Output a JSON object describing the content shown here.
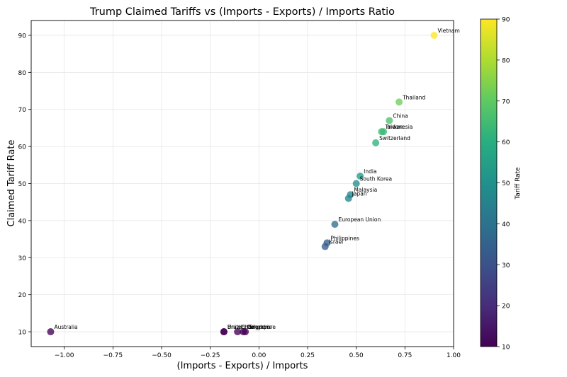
{
  "chart_data": {
    "type": "scatter",
    "title": "Trump Claimed Tariffs vs (Imports - Exports) / Imports Ratio",
    "xlabel": "(Imports - Exports) / Imports",
    "ylabel": "Claimed Tariff Rate",
    "xlim": [
      -1.17,
      1.0
    ],
    "ylim": [
      6,
      94
    ],
    "x_ticks": [
      -1.0,
      -0.75,
      -0.5,
      -0.25,
      0.0,
      0.25,
      0.5,
      0.75,
      1.0
    ],
    "x_tick_labels": [
      "−1.00",
      "−0.75",
      "−0.50",
      "−0.25",
      "0.00",
      "0.25",
      "0.50",
      "0.75",
      "1.00"
    ],
    "y_ticks": [
      10,
      20,
      30,
      40,
      50,
      60,
      70,
      80,
      90
    ],
    "y_tick_labels": [
      "10",
      "20",
      "30",
      "40",
      "50",
      "60",
      "70",
      "80",
      "90"
    ],
    "grid": true,
    "colormap": "viridis",
    "colorbar": {
      "label": "Tariff Rate",
      "range": [
        10,
        90
      ],
      "ticks": [
        10,
        20,
        30,
        40,
        50,
        60,
        70,
        80,
        90
      ],
      "tick_labels": [
        "10",
        "20",
        "30",
        "40",
        "50",
        "60",
        "70",
        "80",
        "90"
      ]
    },
    "points": [
      {
        "label": "Vietnam",
        "x": 0.9,
        "y": 90
      },
      {
        "label": "Thailand",
        "x": 0.72,
        "y": 72
      },
      {
        "label": "China",
        "x": 0.67,
        "y": 67
      },
      {
        "label": "Taiwan",
        "x": 0.63,
        "y": 64
      },
      {
        "label": "Indonesia",
        "x": 0.64,
        "y": 64
      },
      {
        "label": "Switzerland",
        "x": 0.6,
        "y": 61
      },
      {
        "label": "India",
        "x": 0.52,
        "y": 52
      },
      {
        "label": "South Korea",
        "x": 0.5,
        "y": 50
      },
      {
        "label": "Malaysia",
        "x": 0.47,
        "y": 47
      },
      {
        "label": "Japan",
        "x": 0.46,
        "y": 46
      },
      {
        "label": "European Union",
        "x": 0.39,
        "y": 39
      },
      {
        "label": "Philippines",
        "x": 0.35,
        "y": 34
      },
      {
        "label": "Israel",
        "x": 0.34,
        "y": 33
      },
      {
        "label": "Australia",
        "x": -1.07,
        "y": 10
      },
      {
        "label": "Brazil",
        "x": -0.18,
        "y": 10
      },
      {
        "label": "United Kingdom",
        "x": -0.18,
        "y": 10
      },
      {
        "label": "Chile",
        "x": -0.11,
        "y": 10
      },
      {
        "label": "Colombia",
        "x": -0.08,
        "y": 10
      },
      {
        "label": "Singapore",
        "x": -0.07,
        "y": 10
      }
    ]
  }
}
